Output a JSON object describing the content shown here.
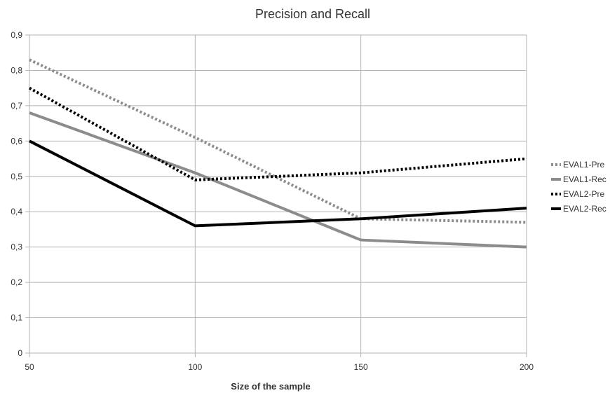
{
  "chart_data": {
    "type": "line",
    "title": "Precision and Recall",
    "xlabel": "Size of the sample",
    "ylabel": "",
    "x": [
      50,
      100,
      150,
      200
    ],
    "x_tick_labels": [
      "50",
      "100",
      "150",
      "200"
    ],
    "ylim": [
      0,
      0.9
    ],
    "y_ticks": [
      0,
      0.1,
      0.2,
      0.3,
      0.4,
      0.5,
      0.6,
      0.7,
      0.8,
      0.9
    ],
    "y_tick_labels": [
      "0",
      "0,1",
      "0,2",
      "0,3",
      "0,4",
      "0,5",
      "0,6",
      "0,7",
      "0,8",
      "0,9"
    ],
    "grid": true,
    "legend_position": "right",
    "series": [
      {
        "name": "EVAL1-Pre",
        "values": [
          0.83,
          0.61,
          0.38,
          0.37
        ],
        "color": "#8c8c8c",
        "style": "dotted"
      },
      {
        "name": "EVAL1-Rec",
        "values": [
          0.68,
          0.51,
          0.32,
          0.3
        ],
        "color": "#8c8c8c",
        "style": "solid"
      },
      {
        "name": "EVAL2-Pre",
        "values": [
          0.75,
          0.49,
          0.51,
          0.55
        ],
        "color": "#000000",
        "style": "dotted"
      },
      {
        "name": "EVAL2-Rec",
        "values": [
          0.6,
          0.36,
          0.38,
          0.41
        ],
        "color": "#000000",
        "style": "solid"
      }
    ]
  }
}
